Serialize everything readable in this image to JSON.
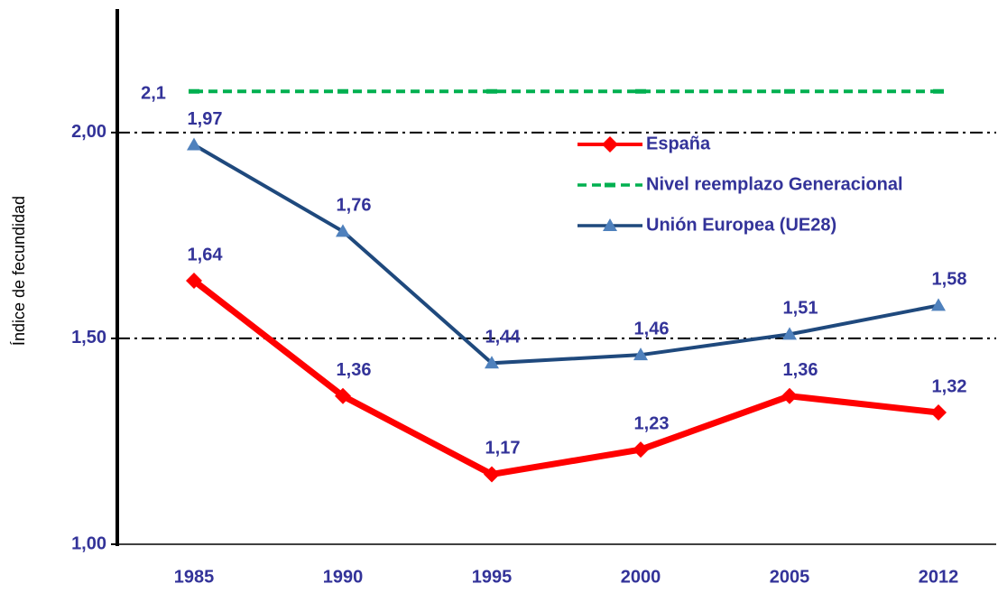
{
  "chart_data": {
    "type": "line",
    "y_label": "Índice de fecundidad",
    "categories": [
      "1985",
      "1990",
      "1995",
      "2000",
      "2005",
      "2012"
    ],
    "series": [
      {
        "name": "España",
        "color": "#ff0000",
        "marker": "diamond",
        "dash": "solid",
        "values": [
          1.64,
          1.36,
          1.17,
          1.23,
          1.36,
          1.32
        ],
        "value_labels": [
          "1,64",
          "1,36",
          "1,17",
          "1,23",
          "1,36",
          "1,32"
        ]
      },
      {
        "name": "Nivel reemplazo Generacional",
        "color": "#00b050",
        "marker": "dash",
        "dash": "dashed",
        "values": [
          2.1,
          2.1,
          2.1,
          2.1,
          2.1,
          2.1
        ],
        "value_labels": [
          "2,1",
          null,
          null,
          null,
          null,
          null
        ]
      },
      {
        "name": "Unión Europea (UE28)",
        "color": "#1f497d",
        "marker": "triangle",
        "dash": "solid",
        "values": [
          1.97,
          1.76,
          1.44,
          1.46,
          1.51,
          1.58
        ],
        "value_labels": [
          "1,97",
          "1,76",
          "1,44",
          "1,46",
          "1,51",
          "1,58"
        ]
      }
    ],
    "ylim": [
      1,
      2.3
    ],
    "yticks": [
      {
        "value": 1,
        "label": "1,00"
      },
      {
        "value": 1.5,
        "label": "1,50"
      },
      {
        "value": 2,
        "label": "2,00"
      }
    ],
    "grid": true
  }
}
